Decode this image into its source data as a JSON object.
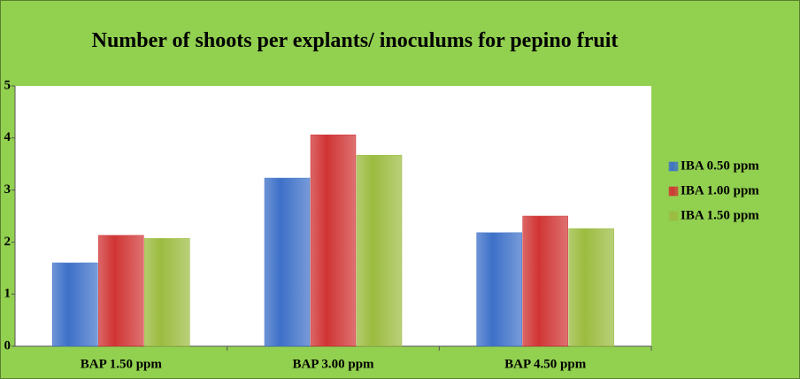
{
  "chart_data": {
    "type": "bar",
    "title": "Number of shoots per explants/ inoculums for pepino fruit",
    "categories": [
      "BAP 1.50 ppm",
      "BAP 3.00 ppm",
      "BAP 4.50 ppm"
    ],
    "series": [
      {
        "name": "IBA 0.50 ppm",
        "color": "#3d70c8",
        "values": [
          1.6,
          3.23,
          2.18
        ]
      },
      {
        "name": "IBA 1.00 ppm",
        "color": "#d03434",
        "values": [
          2.13,
          4.06,
          2.5
        ]
      },
      {
        "name": "IBA 1.50 ppm",
        "color": "#9bbb3f",
        "values": [
          2.07,
          3.67,
          2.26
        ]
      }
    ],
    "ylim": [
      0,
      5
    ],
    "yticks": [
      0,
      1,
      2,
      3,
      4,
      5
    ],
    "legend": "right"
  }
}
